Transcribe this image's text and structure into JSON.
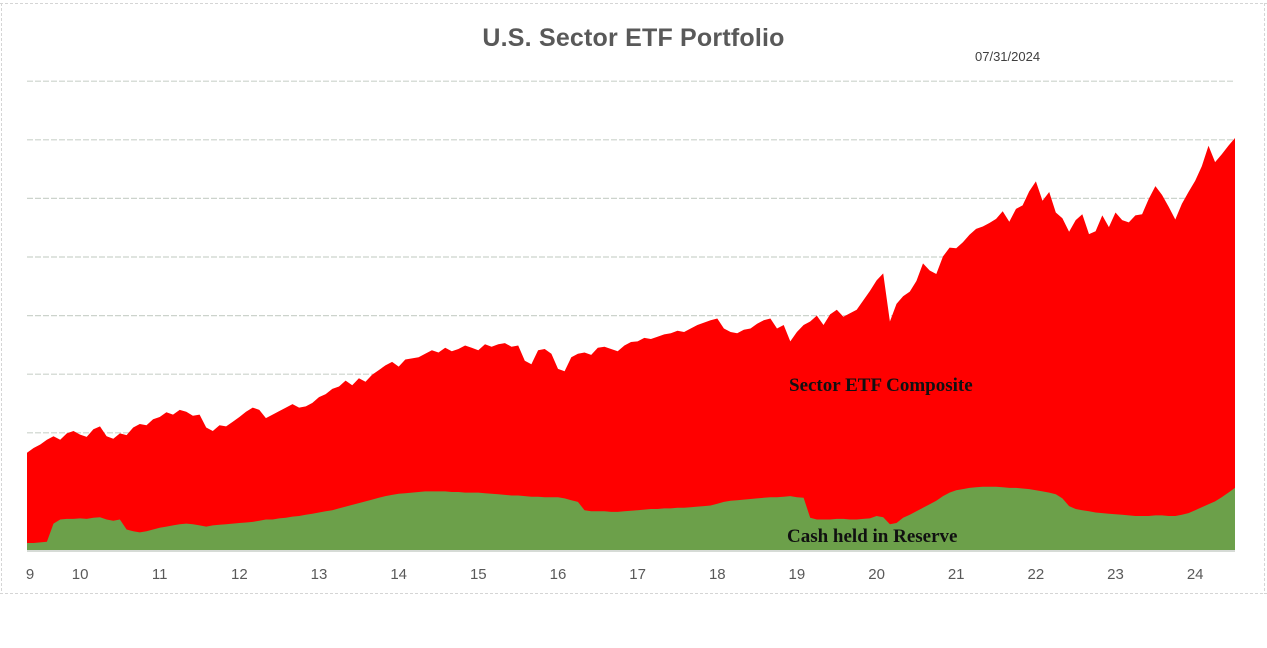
{
  "header": {
    "title": "U.S. Sector ETF Portfolio",
    "date_label": "07/31/2024"
  },
  "chart_data": {
    "type": "area",
    "title": "U.S. Sector ETF Portfolio",
    "as_of": "07/31/2024",
    "xlabel": "",
    "ylabel": "",
    "x_start": "2009-05",
    "x_end": "2024-07",
    "x_tick_labels": [
      "9",
      "10",
      "11",
      "12",
      "13",
      "14",
      "15",
      "16",
      "17",
      "18",
      "19",
      "20",
      "21",
      "22",
      "23",
      "24"
    ],
    "ylim": [
      0,
      8
    ],
    "y_axis_labels_visible": false,
    "y_units_note": "values in horizontal-gridline divisions (no y-axis scale shown in chart)",
    "grid": "horizontal",
    "legend_position": "labels drawn inside areas",
    "categories": [
      "2009-05",
      "2009-06",
      "2009-07",
      "2009-08",
      "2009-09",
      "2009-10",
      "2009-11",
      "2009-12",
      "2010-01",
      "2010-02",
      "2010-03",
      "2010-04",
      "2010-05",
      "2010-06",
      "2010-07",
      "2010-08",
      "2010-09",
      "2010-10",
      "2010-11",
      "2010-12",
      "2011-01",
      "2011-02",
      "2011-03",
      "2011-04",
      "2011-05",
      "2011-06",
      "2011-07",
      "2011-08",
      "2011-09",
      "2011-10",
      "2011-11",
      "2011-12",
      "2012-01",
      "2012-02",
      "2012-03",
      "2012-04",
      "2012-05",
      "2012-06",
      "2012-07",
      "2012-08",
      "2012-09",
      "2012-10",
      "2012-11",
      "2012-12",
      "2013-01",
      "2013-02",
      "2013-03",
      "2013-04",
      "2013-05",
      "2013-06",
      "2013-07",
      "2013-08",
      "2013-09",
      "2013-10",
      "2013-11",
      "2013-12",
      "2014-01",
      "2014-02",
      "2014-03",
      "2014-04",
      "2014-05",
      "2014-06",
      "2014-07",
      "2014-08",
      "2014-09",
      "2014-10",
      "2014-11",
      "2014-12",
      "2015-01",
      "2015-02",
      "2015-03",
      "2015-04",
      "2015-05",
      "2015-06",
      "2015-07",
      "2015-08",
      "2015-09",
      "2015-10",
      "2015-11",
      "2015-12",
      "2016-01",
      "2016-02",
      "2016-03",
      "2016-04",
      "2016-05",
      "2016-06",
      "2016-07",
      "2016-08",
      "2016-09",
      "2016-10",
      "2016-11",
      "2016-12",
      "2017-01",
      "2017-02",
      "2017-03",
      "2017-04",
      "2017-05",
      "2017-06",
      "2017-07",
      "2017-08",
      "2017-09",
      "2017-10",
      "2017-11",
      "2017-12",
      "2018-01",
      "2018-02",
      "2018-03",
      "2018-04",
      "2018-05",
      "2018-06",
      "2018-07",
      "2018-08",
      "2018-09",
      "2018-10",
      "2018-11",
      "2018-12",
      "2019-01",
      "2019-02",
      "2019-03",
      "2019-04",
      "2019-05",
      "2019-06",
      "2019-07",
      "2019-08",
      "2019-09",
      "2019-10",
      "2019-11",
      "2019-12",
      "2020-01",
      "2020-02",
      "2020-03",
      "2020-04",
      "2020-05",
      "2020-06",
      "2020-07",
      "2020-08",
      "2020-09",
      "2020-10",
      "2020-11",
      "2020-12",
      "2021-01",
      "2021-02",
      "2021-03",
      "2021-04",
      "2021-05",
      "2021-06",
      "2021-07",
      "2021-08",
      "2021-09",
      "2021-10",
      "2021-11",
      "2021-12",
      "2022-01",
      "2022-02",
      "2022-03",
      "2022-04",
      "2022-05",
      "2022-06",
      "2022-07",
      "2022-08",
      "2022-09",
      "2022-10",
      "2022-11",
      "2022-12",
      "2023-01",
      "2023-02",
      "2023-03",
      "2023-04",
      "2023-05",
      "2023-06",
      "2023-07",
      "2023-08",
      "2023-09",
      "2023-10",
      "2023-11",
      "2023-12",
      "2024-01",
      "2024-02",
      "2024-03",
      "2024-04",
      "2024-05",
      "2024-06",
      "2024-07"
    ],
    "series": [
      {
        "name": "Sector ETF Composite",
        "color": "#ff0000",
        "values": [
          1.66,
          1.74,
          1.8,
          1.88,
          1.94,
          1.88,
          1.99,
          2.03,
          1.97,
          1.93,
          2.06,
          2.11,
          1.94,
          1.9,
          1.99,
          1.96,
          2.09,
          2.15,
          2.13,
          2.23,
          2.27,
          2.35,
          2.31,
          2.39,
          2.36,
          2.29,
          2.31,
          2.09,
          2.03,
          2.13,
          2.11,
          2.19,
          2.27,
          2.36,
          2.43,
          2.39,
          2.25,
          2.31,
          2.37,
          2.43,
          2.49,
          2.43,
          2.45,
          2.51,
          2.61,
          2.66,
          2.75,
          2.79,
          2.89,
          2.81,
          2.93,
          2.87,
          2.99,
          3.07,
          3.15,
          3.21,
          3.13,
          3.25,
          3.27,
          3.29,
          3.35,
          3.41,
          3.37,
          3.45,
          3.39,
          3.43,
          3.49,
          3.45,
          3.41,
          3.51,
          3.47,
          3.51,
          3.53,
          3.47,
          3.49,
          3.23,
          3.17,
          3.41,
          3.43,
          3.35,
          3.09,
          3.05,
          3.29,
          3.35,
          3.37,
          3.33,
          3.45,
          3.47,
          3.43,
          3.39,
          3.49,
          3.55,
          3.56,
          3.62,
          3.6,
          3.64,
          3.68,
          3.7,
          3.74,
          3.72,
          3.78,
          3.84,
          3.88,
          3.92,
          3.95,
          3.78,
          3.72,
          3.7,
          3.76,
          3.78,
          3.86,
          3.92,
          3.95,
          3.78,
          3.84,
          3.56,
          3.72,
          3.84,
          3.9,
          4.0,
          3.84,
          4.02,
          4.1,
          3.98,
          4.04,
          4.1,
          4.26,
          4.42,
          4.6,
          4.72,
          3.9,
          4.2,
          4.33,
          4.41,
          4.59,
          4.89,
          4.77,
          4.71,
          5.01,
          5.16,
          5.15,
          5.25,
          5.38,
          5.48,
          5.52,
          5.58,
          5.65,
          5.78,
          5.6,
          5.82,
          5.88,
          6.12,
          6.29,
          5.96,
          6.11,
          5.76,
          5.66,
          5.43,
          5.63,
          5.73,
          5.39,
          5.44,
          5.71,
          5.51,
          5.76,
          5.63,
          5.59,
          5.71,
          5.73,
          5.99,
          6.21,
          6.06,
          5.86,
          5.64,
          5.91,
          6.11,
          6.3,
          6.55,
          6.9,
          6.62,
          6.75,
          6.9,
          7.03
        ]
      },
      {
        "name": "Cash held in Reserve",
        "color": "#6ca04a",
        "values": [
          0.12,
          0.12,
          0.13,
          0.14,
          0.45,
          0.52,
          0.53,
          0.53,
          0.54,
          0.53,
          0.55,
          0.56,
          0.52,
          0.5,
          0.52,
          0.35,
          0.32,
          0.3,
          0.32,
          0.35,
          0.38,
          0.4,
          0.42,
          0.44,
          0.45,
          0.44,
          0.42,
          0.4,
          0.42,
          0.43,
          0.44,
          0.45,
          0.46,
          0.47,
          0.48,
          0.5,
          0.52,
          0.52,
          0.54,
          0.55,
          0.57,
          0.58,
          0.6,
          0.62,
          0.64,
          0.66,
          0.68,
          0.71,
          0.74,
          0.77,
          0.8,
          0.83,
          0.86,
          0.89,
          0.92,
          0.94,
          0.96,
          0.97,
          0.98,
          0.99,
          1.0,
          1.0,
          1.0,
          1.0,
          0.99,
          0.99,
          0.98,
          0.98,
          0.98,
          0.97,
          0.96,
          0.95,
          0.94,
          0.93,
          0.93,
          0.92,
          0.91,
          0.91,
          0.9,
          0.9,
          0.9,
          0.88,
          0.85,
          0.82,
          0.68,
          0.66,
          0.66,
          0.66,
          0.65,
          0.65,
          0.66,
          0.67,
          0.68,
          0.69,
          0.7,
          0.7,
          0.71,
          0.71,
          0.72,
          0.72,
          0.73,
          0.74,
          0.75,
          0.76,
          0.79,
          0.82,
          0.84,
          0.85,
          0.86,
          0.87,
          0.88,
          0.89,
          0.9,
          0.9,
          0.91,
          0.92,
          0.9,
          0.89,
          0.55,
          0.52,
          0.52,
          0.52,
          0.53,
          0.53,
          0.52,
          0.52,
          0.53,
          0.54,
          0.58,
          0.56,
          0.44,
          0.46,
          0.55,
          0.6,
          0.66,
          0.72,
          0.78,
          0.84,
          0.92,
          0.98,
          1.02,
          1.04,
          1.06,
          1.07,
          1.08,
          1.08,
          1.08,
          1.07,
          1.06,
          1.06,
          1.05,
          1.04,
          1.02,
          1.0,
          0.98,
          0.95,
          0.88,
          0.75,
          0.7,
          0.68,
          0.66,
          0.64,
          0.63,
          0.62,
          0.61,
          0.6,
          0.59,
          0.58,
          0.58,
          0.58,
          0.59,
          0.59,
          0.58,
          0.58,
          0.6,
          0.63,
          0.68,
          0.73,
          0.78,
          0.83,
          0.9,
          0.98,
          1.06
        ]
      }
    ],
    "colors": {
      "series_red": "#ff0000",
      "series_green": "#6ca04a",
      "gridline": "#ccd3cc",
      "axis_line": "#c9cfc9",
      "frame": "#d5d5d5",
      "tick_text": "#595959",
      "title_text": "#595959",
      "annotation_text": "#111111"
    }
  }
}
